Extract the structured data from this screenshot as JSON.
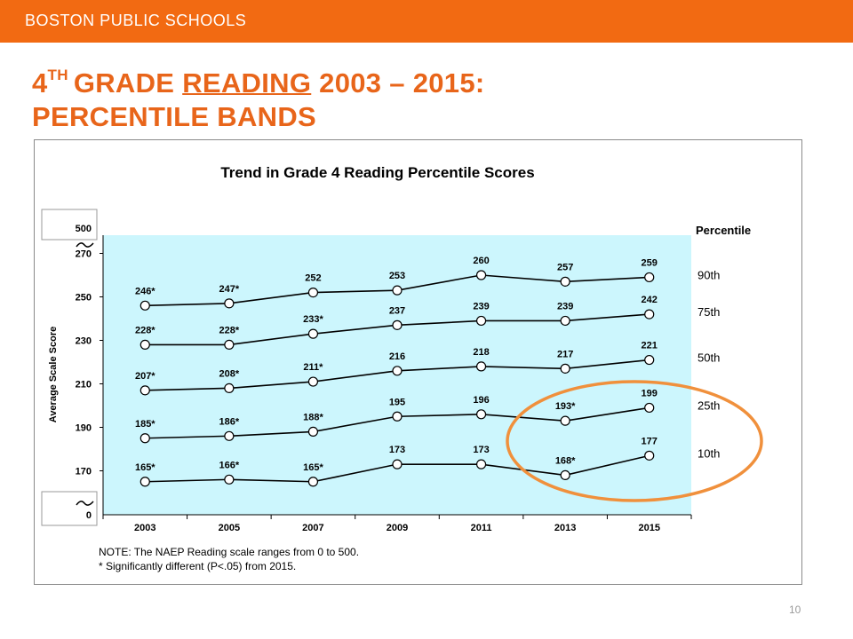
{
  "header": {
    "org_label": "BOSTON PUBLIC SCHOOLS"
  },
  "slide": {
    "title_line1_num": "4",
    "title_line1_sup": "TH",
    "title_line1_pre": "GRADE ",
    "title_line1_ul": "READING",
    "title_line1_post": " 2003 – 2015:",
    "title_line2": "PERCENTILE BANDS",
    "page_number": "10"
  },
  "colors": {
    "header_bg": "#f26a12",
    "title": "#e8651a",
    "plot_bg": "#ccf6fd",
    "highlight_circle": "#f0903c",
    "line": "#000000"
  },
  "chart_data": {
    "type": "line",
    "title": "Trend in Grade 4 Reading Percentile Scores",
    "xlabel": "",
    "ylabel": "Average Scale Score",
    "categories": [
      "2003",
      "2005",
      "2007",
      "2009",
      "2011",
      "2013",
      "2015"
    ],
    "y_ticks": [
      "0",
      "170",
      "190",
      "210",
      "230",
      "250",
      "270",
      "500"
    ],
    "ylim": [
      160,
      280
    ],
    "y_axis_breaks": true,
    "legend_title": "Percentile",
    "legend_placement": "right",
    "series": [
      {
        "name": "90th",
        "values": [
          246,
          247,
          252,
          253,
          260,
          257,
          259
        ],
        "labels": [
          "246*",
          "247*",
          "252",
          "253",
          "260",
          "257",
          "259"
        ]
      },
      {
        "name": "75th",
        "values": [
          228,
          228,
          233,
          237,
          239,
          239,
          242
        ],
        "labels": [
          "228*",
          "228*",
          "233*",
          "237",
          "239",
          "239",
          "242"
        ]
      },
      {
        "name": "50th",
        "values": [
          207,
          208,
          211,
          216,
          218,
          217,
          221
        ],
        "labels": [
          "207*",
          "208*",
          "211*",
          "216",
          "218",
          "217",
          "221"
        ]
      },
      {
        "name": "25th",
        "values": [
          185,
          186,
          188,
          195,
          196,
          193,
          199
        ],
        "labels": [
          "185*",
          "186*",
          "188*",
          "195",
          "196",
          "193*",
          "199"
        ]
      },
      {
        "name": "10th",
        "values": [
          165,
          166,
          165,
          173,
          173,
          168,
          177
        ],
        "labels": [
          "165*",
          "166*",
          "165*",
          "173",
          "173",
          "168*",
          "177"
        ]
      }
    ],
    "notes": [
      "NOTE: The NAEP Reading scale ranges from 0 to 500.",
      "* Significantly different (P<.05) from 2015."
    ],
    "grid": false,
    "highlight": "2013–2015 values of the 25th and 10th percentiles circled"
  }
}
